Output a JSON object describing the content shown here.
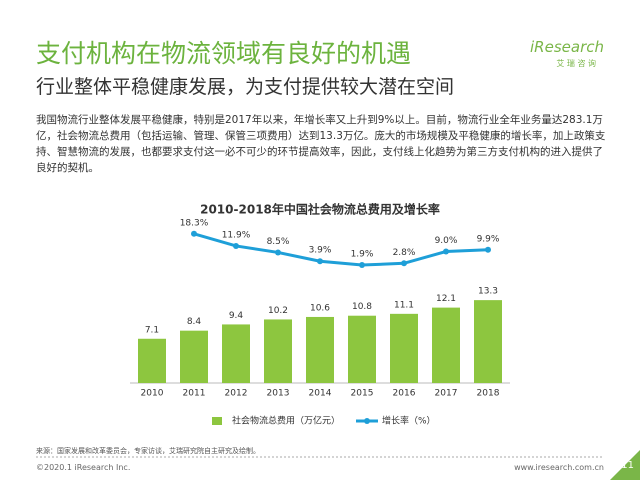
{
  "header": {
    "title": "支付机构在物流领域有良好的机遇",
    "subtitle": "行业整体平稳健康发展，为支付提供较大潜在空间",
    "logo": "iResearch",
    "logo_sub": "艾 瑞 咨 询"
  },
  "body": "我国物流行业整体发展平稳健康，特别是2017年以来，年增长率又上升到9%以上。目前，物流行业全年业务量达283.1万亿，社会物流总费用（包括运输、管理、保管三项费用）达到13.3万亿。庞大的市场规模及平稳健康的增长率，加上政策支持、智慧物流的发展，也都要求支付这一必不可少的环节提高效率，因此，支付线上化趋势为第三方支付机构的进入提供了良好的契机。",
  "chart_data": {
    "type": "bar",
    "title": "2010-2018年中国社会物流总费用及增长率",
    "categories": [
      "2010",
      "2011",
      "2012",
      "2013",
      "2014",
      "2015",
      "2016",
      "2017",
      "2018"
    ],
    "series": [
      {
        "name": "社会物流总费用（万亿元）",
        "type": "bar",
        "color": "#8dc63f",
        "values": [
          7.1,
          8.4,
          9.4,
          10.2,
          10.6,
          10.8,
          11.1,
          12.1,
          13.3
        ]
      },
      {
        "name": "增长率（%）",
        "type": "line",
        "axis": "y2",
        "color": "#1e9fd8",
        "values": [
          null,
          18.3,
          11.9,
          8.5,
          3.9,
          1.9,
          2.8,
          9.0,
          9.9
        ],
        "value_labels": [
          null,
          "18.3%",
          "11.9%",
          "8.5%",
          "3.9%",
          "1.9%",
          "2.8%",
          "9.0%",
          "9.9%"
        ]
      }
    ],
    "ylim": [
      0,
      26
    ],
    "y2lim": [
      -60,
      25
    ],
    "legend": "bottom"
  },
  "source": "来源：国家发展和改革委员会，专家访谈，艾瑞研究院自主研究及绘制。",
  "footer": {
    "copyright": "©2020.1 iResearch Inc.",
    "url": "www.iresearch.com.cn",
    "page": "11"
  }
}
